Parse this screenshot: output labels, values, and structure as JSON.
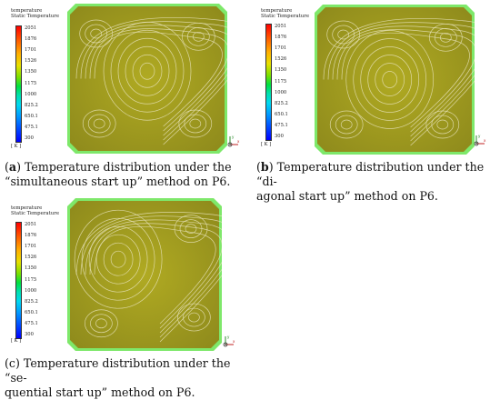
{
  "legend": {
    "title": "temperature",
    "subtitle": "Static Temperature",
    "ticks": [
      "2051",
      "1876",
      "1701",
      "1526",
      "1350",
      "1175",
      "1000",
      "825.2",
      "650.1",
      "475.1",
      "300"
    ],
    "unit": "[ K ]"
  },
  "axes_labels": {
    "x": "x",
    "y": "y"
  },
  "captions": {
    "a": {
      "letter": "a",
      "line1": "Temperature distribution under the",
      "line2": "“simultaneous start up” method on P6."
    },
    "b": {
      "letter": "b",
      "line1": "Temperature distribution under the “di-",
      "line2": "agonal start up” method on P6."
    },
    "c": {
      "letter": "c",
      "line1": "Temperature distribution under the “se-",
      "line2": "quential start up” method on P6."
    }
  },
  "colors": {
    "field": "#b0aa22",
    "field_dark": "#8e8a1c",
    "streamline": "#e6e2b8",
    "rim": "#7ee86a"
  }
}
